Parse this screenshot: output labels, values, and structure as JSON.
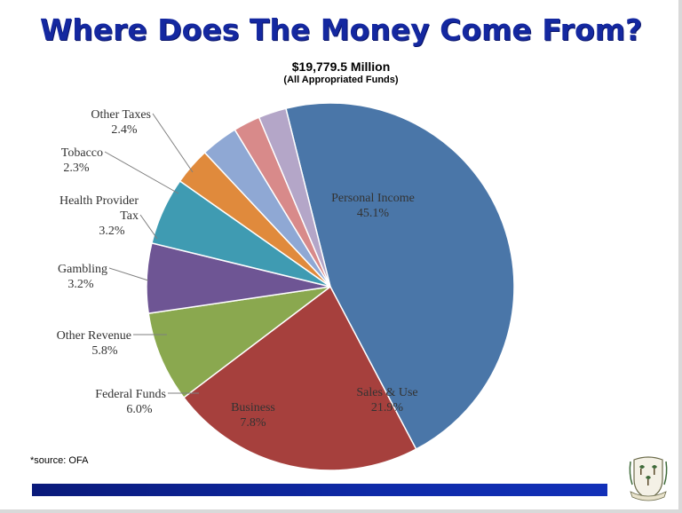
{
  "slide": {
    "title": "Where Does The Money Come From?",
    "source_note": "*source: OFA"
  },
  "chart_data": {
    "type": "pie",
    "title": "$19,779.5 Million",
    "subtitle": "(All Appropriated Funds)",
    "slices": [
      {
        "name": "Personal Income",
        "value": 45.1,
        "label": "45.1%",
        "color": "#4a76a8"
      },
      {
        "name": "Sales & Use",
        "value": 21.9,
        "label": "21.9%",
        "color": "#a6403d"
      },
      {
        "name": "Business",
        "value": 7.8,
        "label": "7.8%",
        "color": "#8aa84f"
      },
      {
        "name": "Federal Funds",
        "value": 6.0,
        "label": "6.0%",
        "color": "#6e5594"
      },
      {
        "name": "Other Revenue",
        "value": 5.8,
        "label": "5.8%",
        "color": "#3f9bb2"
      },
      {
        "name": "Gambling",
        "value": 3.2,
        "label": "3.2%",
        "color": "#e08a3c"
      },
      {
        "name": "Health Provider Tax",
        "value": 3.2,
        "label": "3.2%",
        "color": "#8fa8d4",
        "label_lines": [
          "Health Provider",
          "Tax"
        ]
      },
      {
        "name": "Tobacco",
        "value": 2.3,
        "label": "2.3%",
        "color": "#d88a8a"
      },
      {
        "name": "Other Taxes",
        "value": 2.4,
        "label": "2.4%",
        "color": "#b4a6c8"
      }
    ]
  }
}
